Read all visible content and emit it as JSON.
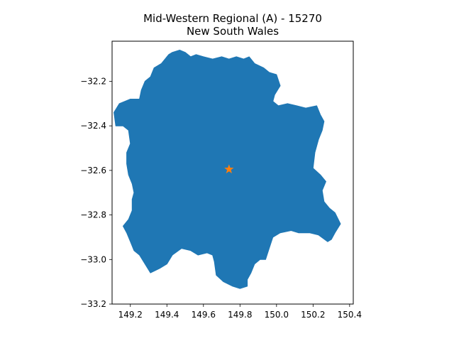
{
  "figure": {
    "title_line1": "Mid-Western Regional (A) - 15270",
    "title_line2": "New South Wales"
  },
  "chart_data": {
    "type": "map",
    "title": "Mid-Western Regional (A) - 15270\nNew South Wales",
    "xlim": [
      149.1,
      150.42
    ],
    "ylim": [
      -33.2,
      -32.02
    ],
    "x_ticks": [
      149.2,
      149.4,
      149.6,
      149.8,
      150.0,
      150.2,
      150.4
    ],
    "x_tick_labels": [
      "149.2",
      "149.4",
      "149.6",
      "149.8",
      "150.0",
      "150.2",
      "150.4"
    ],
    "y_ticks": [
      -32.2,
      -32.4,
      -32.6,
      -32.8,
      -33.0,
      -33.2
    ],
    "y_tick_labels": [
      "−32.2",
      "−32.4",
      "−32.6",
      "−32.8",
      "−33.0",
      "−33.2"
    ],
    "region": {
      "name": "Mid-Western Regional (A)",
      "color": "#1f77b4",
      "boundary": [
        [
          149.41,
          -32.08
        ],
        [
          149.43,
          -32.07
        ],
        [
          149.47,
          -32.06
        ],
        [
          149.5,
          -32.07
        ],
        [
          149.53,
          -32.09
        ],
        [
          149.56,
          -32.08
        ],
        [
          149.6,
          -32.09
        ],
        [
          149.65,
          -32.1
        ],
        [
          149.7,
          -32.09
        ],
        [
          149.74,
          -32.1
        ],
        [
          149.78,
          -32.09
        ],
        [
          149.82,
          -32.1
        ],
        [
          149.85,
          -32.09
        ],
        [
          149.88,
          -32.12
        ],
        [
          149.93,
          -32.14
        ],
        [
          149.96,
          -32.16
        ],
        [
          150.0,
          -32.17
        ],
        [
          150.02,
          -32.22
        ],
        [
          149.99,
          -32.26
        ],
        [
          149.98,
          -32.29
        ],
        [
          150.01,
          -32.31
        ],
        [
          150.06,
          -32.3
        ],
        [
          150.11,
          -32.31
        ],
        [
          150.16,
          -32.32
        ],
        [
          150.22,
          -32.31
        ],
        [
          150.24,
          -32.35
        ],
        [
          150.26,
          -32.38
        ],
        [
          150.25,
          -32.42
        ],
        [
          150.23,
          -32.46
        ],
        [
          150.21,
          -32.52
        ],
        [
          150.2,
          -32.59
        ],
        [
          150.24,
          -32.62
        ],
        [
          150.27,
          -32.65
        ],
        [
          150.25,
          -32.69
        ],
        [
          150.26,
          -32.74
        ],
        [
          150.29,
          -32.77
        ],
        [
          150.32,
          -32.79
        ],
        [
          150.35,
          -32.84
        ],
        [
          150.32,
          -32.88
        ],
        [
          150.3,
          -32.91
        ],
        [
          150.28,
          -32.92
        ],
        [
          150.23,
          -32.89
        ],
        [
          150.18,
          -32.88
        ],
        [
          150.12,
          -32.88
        ],
        [
          150.08,
          -32.87
        ],
        [
          150.02,
          -32.88
        ],
        [
          149.98,
          -32.9
        ],
        [
          149.96,
          -32.95
        ],
        [
          149.94,
          -33.0
        ],
        [
          149.91,
          -33.0
        ],
        [
          149.88,
          -33.02
        ],
        [
          149.86,
          -33.06
        ],
        [
          149.84,
          -33.09
        ],
        [
          149.84,
          -33.12
        ],
        [
          149.8,
          -33.13
        ],
        [
          149.76,
          -33.12
        ],
        [
          149.71,
          -33.1
        ],
        [
          149.67,
          -33.07
        ],
        [
          149.66,
          -33.01
        ],
        [
          149.65,
          -32.98
        ],
        [
          149.62,
          -32.97
        ],
        [
          149.57,
          -32.98
        ],
        [
          149.53,
          -32.96
        ],
        [
          149.48,
          -32.95
        ],
        [
          149.43,
          -32.98
        ],
        [
          149.4,
          -33.02
        ],
        [
          149.36,
          -33.04
        ],
        [
          149.31,
          -33.06
        ],
        [
          149.28,
          -33.02
        ],
        [
          149.25,
          -32.98
        ],
        [
          149.22,
          -32.96
        ],
        [
          149.2,
          -32.92
        ],
        [
          149.18,
          -32.88
        ],
        [
          149.16,
          -32.85
        ],
        [
          149.19,
          -32.82
        ],
        [
          149.21,
          -32.78
        ],
        [
          149.21,
          -32.73
        ],
        [
          149.22,
          -32.7
        ],
        [
          149.21,
          -32.66
        ],
        [
          149.19,
          -32.62
        ],
        [
          149.18,
          -32.57
        ],
        [
          149.18,
          -32.52
        ],
        [
          149.2,
          -32.48
        ],
        [
          149.19,
          -32.42
        ],
        [
          149.16,
          -32.4
        ],
        [
          149.12,
          -32.4
        ],
        [
          149.11,
          -32.34
        ],
        [
          149.14,
          -32.3
        ],
        [
          149.2,
          -32.28
        ],
        [
          149.25,
          -32.28
        ],
        [
          149.26,
          -32.24
        ],
        [
          149.28,
          -32.2
        ],
        [
          149.31,
          -32.18
        ],
        [
          149.33,
          -32.14
        ],
        [
          149.37,
          -32.12
        ],
        [
          149.39,
          -32.1
        ]
      ]
    },
    "centroid": {
      "x": 149.74,
      "y": -32.595,
      "marker": "star",
      "color": "#ff7f0e"
    }
  }
}
